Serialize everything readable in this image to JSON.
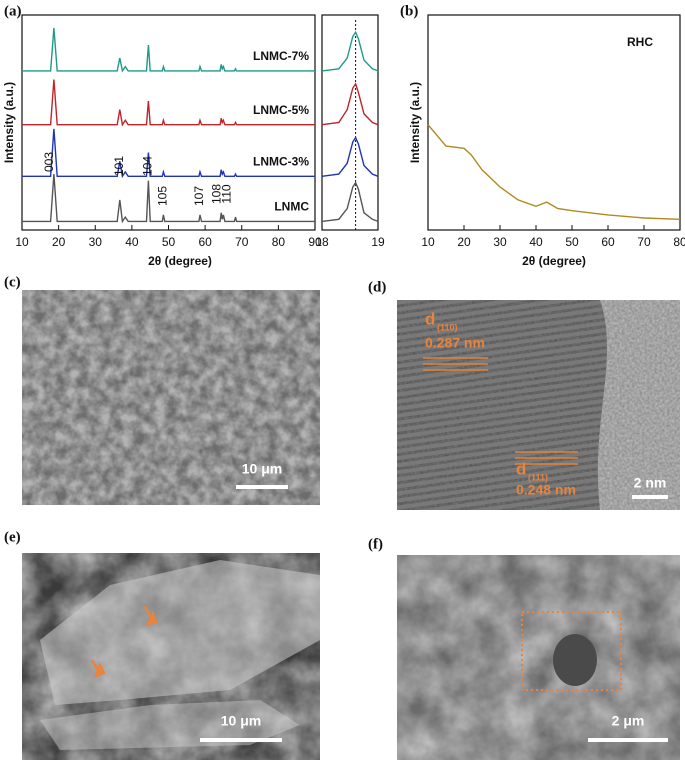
{
  "chart_data": [
    {
      "type": "line",
      "panel": "(a)",
      "xlabel": "2θ (degree)",
      "ylabel": "Intensity (a.u.)",
      "xlim": [
        10,
        90
      ],
      "xticks": [
        10,
        20,
        30,
        40,
        50,
        60,
        70,
        80,
        90
      ],
      "ylim": [
        0,
        100
      ],
      "x": [
        10,
        17.8,
        18.7,
        19.6,
        36,
        36.7,
        37.4,
        38.2,
        39,
        44,
        44.5,
        45,
        48.3,
        48.6,
        49,
        58.3,
        58.6,
        59,
        64.1,
        64.4,
        64.7,
        65,
        65.4,
        68,
        68.3,
        68.6,
        82,
        90
      ],
      "series": [
        {
          "name": "LNMC",
          "color": "#555555",
          "values": [
            4,
            4,
            26,
            4,
            4,
            14,
            4,
            6,
            4,
            4,
            23,
            4,
            4,
            7,
            4,
            4,
            7,
            4,
            4,
            8,
            5,
            7,
            4,
            4,
            6,
            4,
            4,
            4
          ]
        },
        {
          "name": "LNMC-3%",
          "color": "#1f35b4",
          "values": [
            25,
            25,
            47,
            25,
            25,
            32,
            25,
            27,
            25,
            25,
            36,
            25,
            25,
            27,
            25,
            25,
            27,
            25,
            25,
            28,
            26,
            27,
            25,
            25,
            26,
            25,
            25,
            25
          ]
        },
        {
          "name": "LNMC-5%",
          "color": "#c0242a",
          "values": [
            49,
            49,
            70,
            49,
            49,
            56,
            49,
            51,
            49,
            49,
            60,
            49,
            49,
            51,
            49,
            49,
            51,
            49,
            49,
            52,
            50,
            51,
            49,
            49,
            50,
            49,
            49,
            49
          ]
        },
        {
          "name": "LNMC-7%",
          "color": "#1f9a8a",
          "values": [
            74,
            74,
            94,
            74,
            74,
            80,
            74,
            76,
            74,
            74,
            86,
            74,
            74,
            76,
            74,
            74,
            76,
            74,
            74,
            77,
            75,
            76,
            74,
            74,
            75,
            74,
            74,
            74
          ]
        }
      ],
      "peak_labels": [
        {
          "label": "003",
          "x": 18.7
        },
        {
          "label": "101",
          "x": 36.7
        },
        {
          "label": "104",
          "x": 44.5
        },
        {
          "label": "105",
          "x": 48.6
        },
        {
          "label": "107",
          "x": 58.6
        },
        {
          "label": "108",
          "x": 64.4
        },
        {
          "label": "110",
          "x": 65
        }
      ]
    },
    {
      "type": "line",
      "xlim": [
        18,
        19
      ],
      "xticks": [
        18,
        19
      ],
      "ylim": [
        0,
        100
      ],
      "vline": 18.6,
      "x": [
        18,
        18.3,
        18.45,
        18.55,
        18.6,
        18.65,
        18.75,
        18.9,
        19
      ],
      "series": [
        {
          "name": "LNMC",
          "color": "#555555",
          "values": [
            4,
            5,
            10,
            20,
            22,
            19,
            8,
            5,
            4
          ]
        },
        {
          "name": "LNMC-3%",
          "color": "#1f35b4",
          "values": [
            25,
            26,
            31,
            41,
            43,
            40,
            30,
            26,
            25
          ]
        },
        {
          "name": "LNMC-5%",
          "color": "#c0242a",
          "values": [
            49,
            50,
            56,
            66,
            68,
            64,
            54,
            50,
            49
          ]
        },
        {
          "name": "LNMC-7%",
          "color": "#1f9a8a",
          "values": [
            74,
            75,
            80,
            90,
            92,
            89,
            79,
            75,
            74
          ]
        }
      ]
    },
    {
      "type": "line",
      "panel": "(b)",
      "annotation": "RHC",
      "xlabel": "2θ (degree)",
      "ylabel": "Intensity (a.u.)",
      "xlim": [
        10,
        80
      ],
      "xticks": [
        10,
        20,
        30,
        40,
        50,
        60,
        70,
        80
      ],
      "ylim": [
        0,
        100
      ],
      "x": [
        10,
        15,
        20,
        22,
        25,
        30,
        35,
        40,
        43,
        46,
        50,
        60,
        70,
        80
      ],
      "series": [
        {
          "name": "RHC",
          "color": "#b08a1e",
          "values": [
            49,
            39,
            38,
            35,
            28,
            20,
            14,
            11,
            13,
            10,
            9,
            7,
            5.6,
            5
          ]
        }
      ]
    }
  ],
  "images": {
    "c": {
      "panel": "(c)",
      "scale_bar": "10 μm"
    },
    "d": {
      "panel": "(d)",
      "d1": "d",
      "d1_index": "(110)",
      "d1_value": "0.287 nm",
      "d2": "d",
      "d2_index": "(111)",
      "d2_value": "0.248 nm",
      "scale_bar": "2 nm"
    },
    "e": {
      "panel": "(e)",
      "scale_bar": "10 μm"
    },
    "f": {
      "panel": "(f)",
      "scale_bar": "2 μm"
    }
  }
}
